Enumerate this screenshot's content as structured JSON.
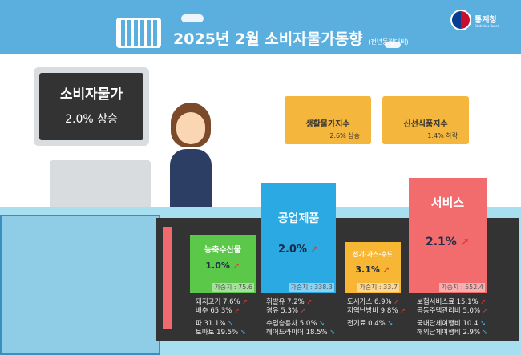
{
  "header": {
    "title": "2025년 2월 소비자물가동향",
    "subtitle": "(전년동월대비)",
    "org": "통계청",
    "org_en": "Statistics Korea"
  },
  "cpi": {
    "label": "소비자물가",
    "value": "2.0% 상승"
  },
  "baskets": [
    {
      "label": "생활물가지수",
      "value": "2.6% 상승"
    },
    {
      "label": "신선식품지수",
      "value": "1.4% 하락"
    }
  ],
  "categories": [
    {
      "name": "농축수산물",
      "value": "1.0%",
      "weight": "가중치 : 75.6",
      "color": "#5cc84a",
      "up": [
        "돼지고기 7.6%",
        "배추 65.3%"
      ],
      "down": [
        "파 31.1%",
        "토마토 19.5%"
      ]
    },
    {
      "name": "공업제품",
      "value": "2.0%",
      "weight": "가중치 : 338.3",
      "color": "#2aa9e3",
      "up": [
        "휘발유 7.2%",
        "경유 5.3%"
      ],
      "down": [
        "수입승용차 5.0%",
        "헤어드라이어 18.5%"
      ]
    },
    {
      "name": "전기·가스·수도",
      "value": "3.1%",
      "weight": "가중치 : 33.7",
      "color": "#f7b633",
      "up": [
        "도시가스 6.9%",
        "지역난방비 9.8%"
      ],
      "down": [
        "전기료 0.4%"
      ]
    },
    {
      "name": "서비스",
      "value": "2.1%",
      "weight": "가중치 : 552.4",
      "color": "#f26c6e",
      "up": [
        "보험서비스료 15.1%",
        "공동주택관리비 5.0%"
      ],
      "down": [
        "국내단체여행비 10.4",
        "해외단체여행비 2.9%"
      ]
    }
  ],
  "icons": {
    "up": "arrow-up-icon",
    "down": "arrow-down-icon"
  }
}
